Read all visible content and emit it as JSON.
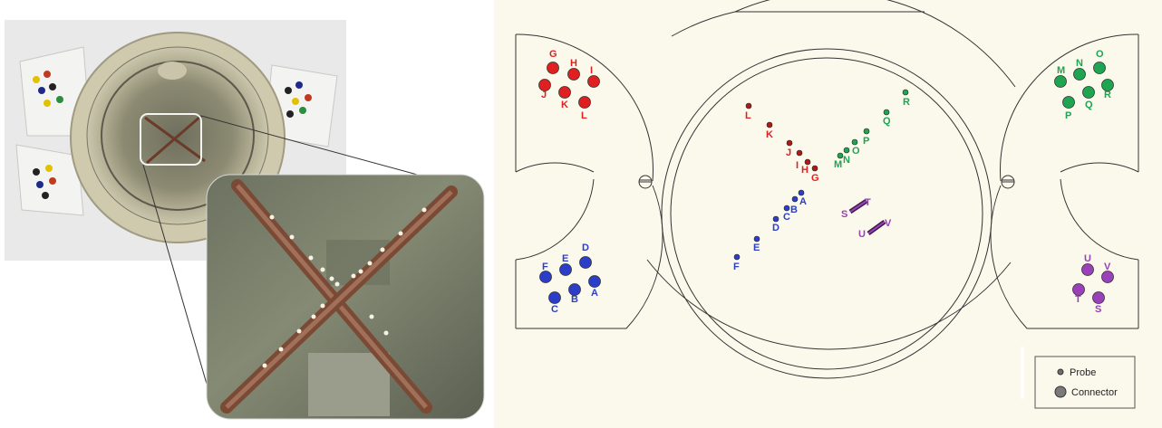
{
  "colors": {
    "red": "#e02020",
    "red_probe": "#b01818",
    "green": "#1fa552",
    "blue": "#2c3ec8",
    "purple": "#9a40b8",
    "diagram_bg": "#fbf8ec",
    "line": "#333333"
  },
  "photo": {
    "left_image": "device photograph with X-shaped probe array on a circular mount",
    "inset_image": "magnified view of the crossed probe shanks"
  },
  "legend": {
    "probe_label": "Probe",
    "connector_label": "Connector"
  },
  "connectors": {
    "red": [
      "G",
      "H",
      "I",
      "J",
      "K",
      "L"
    ],
    "green": [
      "M",
      "N",
      "O",
      "P",
      "Q",
      "R"
    ],
    "blue": [
      "A",
      "B",
      "C",
      "D",
      "E",
      "F"
    ],
    "purple": [
      "S",
      "T",
      "U",
      "V"
    ]
  },
  "probes": {
    "red": [
      "L",
      "K",
      "J",
      "I",
      "H",
      "G"
    ],
    "green": [
      "M",
      "N",
      "O",
      "P",
      "Q",
      "R"
    ],
    "blue": [
      "A",
      "B",
      "C",
      "D",
      "E",
      "F"
    ],
    "purple_bars": [
      {
        "from": "S",
        "to": "T"
      },
      {
        "from": "U",
        "to": "V"
      }
    ]
  }
}
